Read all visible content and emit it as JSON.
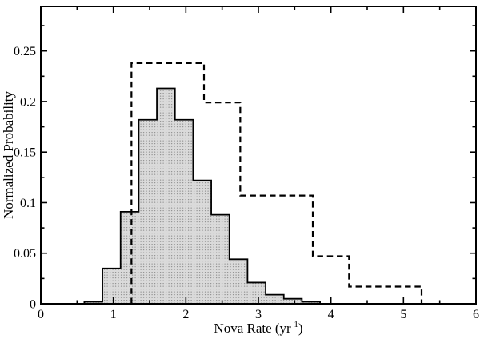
{
  "figure": {
    "background": "#ffffff",
    "frame_color": "#000000",
    "text_color": "#000000"
  },
  "chart_data": {
    "type": "histogram",
    "title": "",
    "xlabel": {
      "text": "Nova Rate (yr-1)",
      "base": "Nova Rate (yr",
      "superscript": "-1",
      "suffix": ")"
    },
    "ylabel": "Normalized Probability",
    "xlim": [
      0,
      6
    ],
    "ylim": [
      0,
      0.294
    ],
    "grid": false,
    "legend": null,
    "x_major_ticks": [
      0,
      1,
      2,
      3,
      4,
      5,
      6
    ],
    "x_tick_labels": [
      "0",
      "1",
      "2",
      "3",
      "4",
      "5",
      "6"
    ],
    "x_minor_step": 0.5,
    "y_major_ticks": [
      0,
      0.05,
      0.1,
      0.15,
      0.2,
      0.25
    ],
    "y_tick_labels": [
      "0",
      "0.05",
      "0.1",
      "0.15",
      "0.2",
      "0.25"
    ],
    "y_minor_step": 0.025,
    "series": [
      {
        "name": "filled-histogram",
        "style": "filled-steps",
        "fill_color": "#dadada",
        "pattern_dot_color": "#8e8e8e",
        "stroke_color": "#000000",
        "bin_edges": [
          0.6,
          0.85,
          1.1,
          1.35,
          1.6,
          1.85,
          2.1,
          2.35,
          2.6,
          2.85,
          3.1,
          3.35,
          3.6,
          3.85
        ],
        "values": [
          0.002,
          0.035,
          0.091,
          0.182,
          0.213,
          0.182,
          0.122,
          0.088,
          0.044,
          0.021,
          0.009,
          0.005,
          0.002
        ]
      },
      {
        "name": "dashed-histogram",
        "style": "dashed-steps",
        "stroke_color": "#000000",
        "bin_edges": [
          1.25,
          2.25,
          2.75,
          3.75,
          4.25,
          5.25
        ],
        "values": [
          0.238,
          0.199,
          0.107,
          0.047,
          0.017
        ]
      }
    ]
  }
}
